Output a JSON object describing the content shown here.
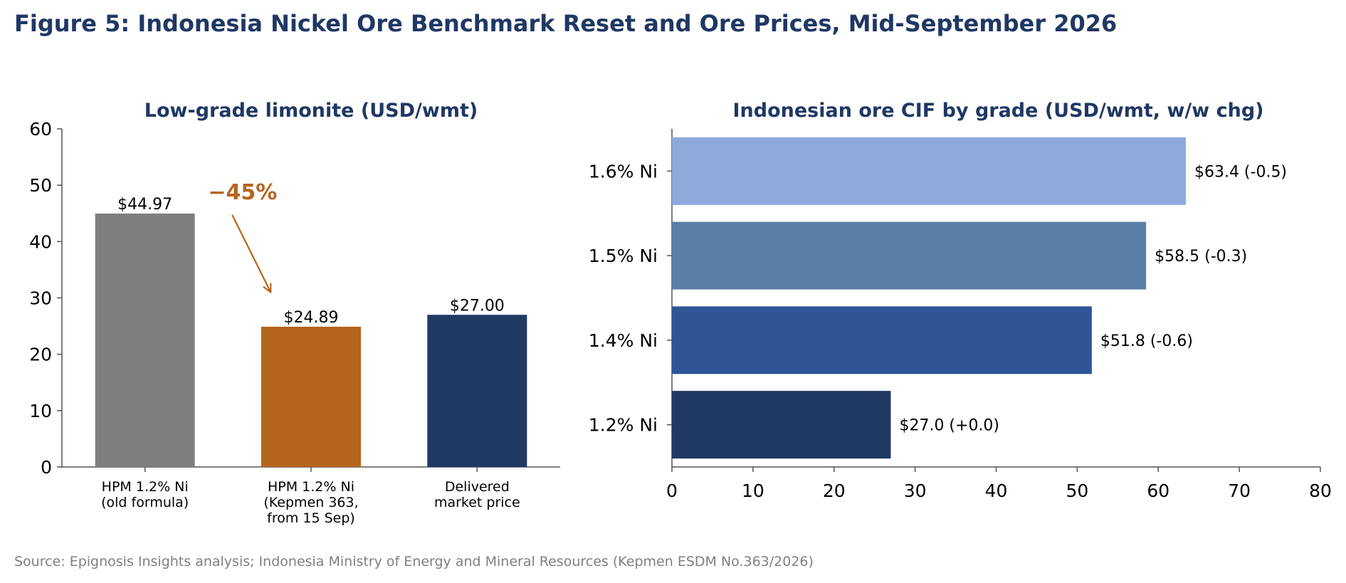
{
  "figure": {
    "title": "Figure 5: Indonesia Nickel Ore Benchmark Reset and Ore Prices, Mid-September 2026",
    "source": "Source: Epignosis Insights analysis; Indonesia Ministry of Energy and Mineral Resources (Kepmen ESDM No.363/2026)"
  },
  "chart_data": [
    {
      "type": "bar",
      "title": "Low-grade limonite (USD/wmt)",
      "categories": [
        [
          "HPM 1.2% Ni",
          "(old formula)"
        ],
        [
          "HPM 1.2% Ni",
          "(Kepmen 363,",
          "from 15 Sep)"
        ],
        [
          "Delivered",
          "market price"
        ]
      ],
      "values": [
        44.97,
        24.89,
        27.0
      ],
      "data_labels": [
        "$44.97",
        "$24.89",
        "$27.00"
      ],
      "colors": [
        "#7f7f7f",
        "#b5651d",
        "#203864"
      ],
      "ylim": [
        0,
        60
      ],
      "yticks": [
        0,
        10,
        20,
        30,
        40,
        50,
        60
      ],
      "annotation": {
        "text": "−45%",
        "color": "#b5651d"
      },
      "grid": false,
      "xlabel": "",
      "ylabel": ""
    },
    {
      "type": "bar",
      "orientation": "horizontal",
      "title": "Indonesian ore CIF by grade (USD/wmt, w/w chg)",
      "categories": [
        "1.6% Ni",
        "1.5% Ni",
        "1.4% Ni",
        "1.2% Ni"
      ],
      "values": [
        63.4,
        58.5,
        51.8,
        27.0
      ],
      "changes": [
        -0.5,
        -0.3,
        -0.6,
        0.0
      ],
      "data_labels": [
        "$63.4  (-0.5)",
        "$58.5  (-0.3)",
        "$51.8  (-0.6)",
        "$27.0  (+0.0)"
      ],
      "colors": [
        "#8eaadb",
        "#5b7fa6",
        "#2f5597",
        "#203864"
      ],
      "xlim": [
        0,
        80
      ],
      "xticks": [
        0,
        10,
        20,
        30,
        40,
        50,
        60,
        70,
        80
      ],
      "grid": false,
      "xlabel": "",
      "ylabel": ""
    }
  ]
}
